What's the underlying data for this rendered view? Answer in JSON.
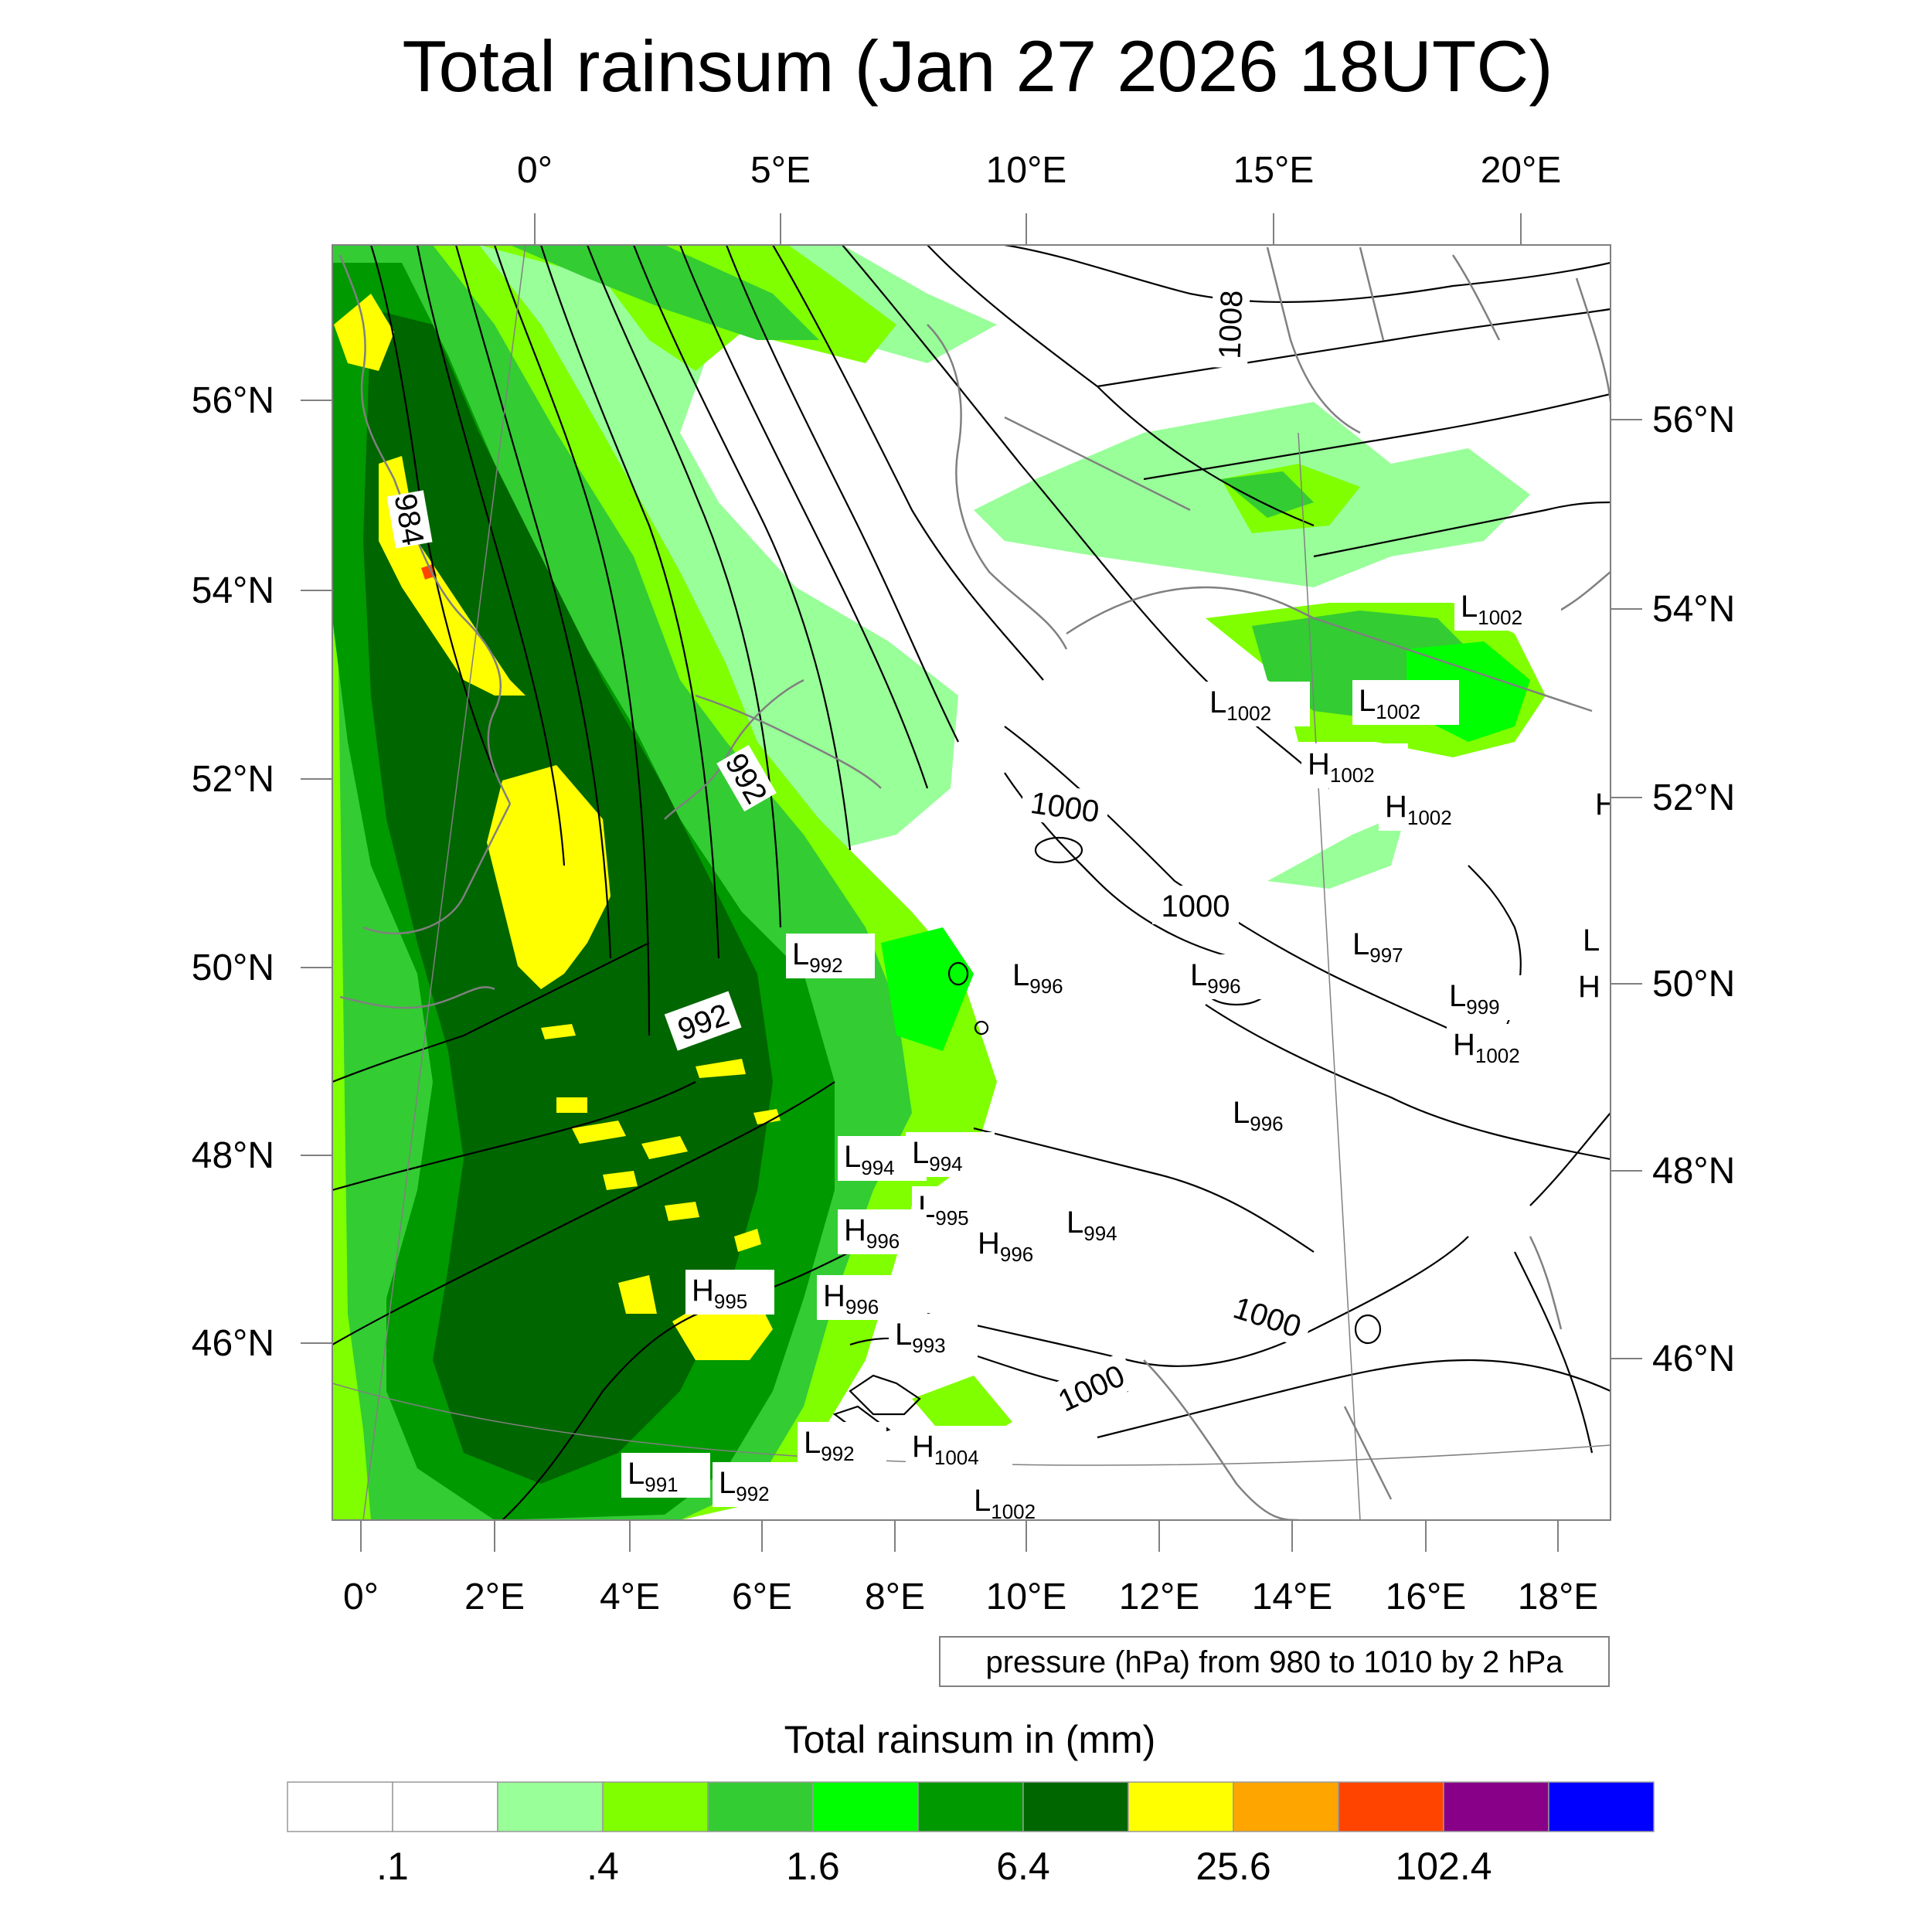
{
  "title": "Total rainsum (Jan 27 2026 18UTC)",
  "top_lon_labels": [
    "0°",
    "5°E",
    "10°E",
    "15°E",
    "20°E"
  ],
  "bottom_lon_labels": [
    "0°",
    "2°E",
    "4°E",
    "6°E",
    "8°E",
    "10°E",
    "12°E",
    "14°E",
    "16°E",
    "18°E"
  ],
  "left_lat_labels": [
    "56°N",
    "54°N",
    "52°N",
    "50°N",
    "48°N",
    "46°N"
  ],
  "right_lat_labels": [
    "56°N",
    "54°N",
    "52°N",
    "50°N",
    "48°N",
    "46°N"
  ],
  "contour_info": "pressure (hPa) from 980 to 1010 by 2 hPa",
  "isobar_labels": [
    "984",
    "992",
    "992",
    "1000",
    "1000",
    "1000",
    "1000",
    "1008"
  ],
  "pressure_centers": [
    {
      "type": "L",
      "value": "1002"
    },
    {
      "type": "L",
      "value": "1002"
    },
    {
      "type": "L",
      "value": "1002"
    },
    {
      "type": "H",
      "value": "1002"
    },
    {
      "type": "H",
      "value": "1002"
    },
    {
      "type": "L",
      "value": "992"
    },
    {
      "type": "L",
      "value": "996"
    },
    {
      "type": "L",
      "value": "996"
    },
    {
      "type": "L",
      "value": "997"
    },
    {
      "type": "L",
      "value": "999"
    },
    {
      "type": "H",
      "value": "1002"
    },
    {
      "type": "L",
      "value": "996"
    },
    {
      "type": "L",
      "value": "994"
    },
    {
      "type": "L",
      "value": "994"
    },
    {
      "type": "L",
      "value": "995"
    },
    {
      "type": "H",
      "value": "996"
    },
    {
      "type": "H",
      "value": "996"
    },
    {
      "type": "L",
      "value": "994"
    },
    {
      "type": "H",
      "value": "995"
    },
    {
      "type": "H",
      "value": "996"
    },
    {
      "type": "L",
      "value": "993"
    },
    {
      "type": "L",
      "value": "992"
    },
    {
      "type": "H",
      "value": "1004"
    },
    {
      "type": "L",
      "value": "991"
    },
    {
      "type": "L",
      "value": "992"
    },
    {
      "type": "L",
      "value": "1002"
    }
  ],
  "colorbar": {
    "title": "Total rainsum in (mm)",
    "labels": [
      ".1",
      ".4",
      "1.6",
      "6.4",
      "25.6",
      "102.4"
    ],
    "colors": [
      "#ffffff",
      "#ffffff",
      "#99ff99",
      "#80ff00",
      "#33cc33",
      "#00ff00",
      "#009900",
      "#006600",
      "#ffff00",
      "#ffa500",
      "#ff4400",
      "#880088",
      "#0000ff"
    ]
  },
  "colors": {
    "coast": "#808080",
    "isobar": "#000000",
    "frame": "#808080"
  }
}
